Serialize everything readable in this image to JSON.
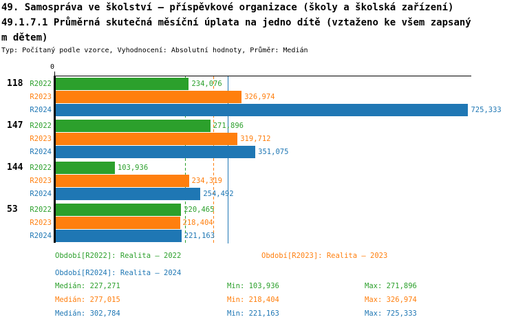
{
  "title": {
    "line1": "49. Samospráva ve školství – příspěvkové organizace (školy a školská zařízení)",
    "line2": "49.1.7.1 Průměrná skutečná měsíční úplata na jedno dítě (vztaženo ke všem zapsaný",
    "line3": "m dětem)",
    "meta": "Typ: Počítaný podle vzorce, Vyhodnocení: Absolutní hodnoty, Průměr: Medián"
  },
  "colors": {
    "background": "#ffffff",
    "axis": "#000000",
    "r2022": "#2ca02c",
    "r2023": "#ff7f0e",
    "r2024": "#1f77b4"
  },
  "chart_data": {
    "type": "bar",
    "orientation": "horizontal",
    "title": "49.1.7.1 Průměrná skutečná měsíční úplata na jedno dítě (vztaženo ke všem zapsaným dětem)",
    "categories": [
      "118",
      "147",
      "144",
      "53"
    ],
    "series": [
      {
        "name": "R2022",
        "label": "Realita – 2022",
        "color": "#2ca02c",
        "values": [
          234076,
          271896,
          103936,
          220465
        ],
        "value_labels": [
          "234,076",
          "271,896",
          "103,936",
          "220,465"
        ],
        "median": 227271,
        "median_label": "227,271",
        "gridline_style": "dashed"
      },
      {
        "name": "R2023",
        "label": "Realita – 2023",
        "color": "#ff7f0e",
        "values": [
          326974,
          319712,
          234319,
          218404
        ],
        "value_labels": [
          "326,974",
          "319,712",
          "234,319",
          "218,404"
        ],
        "median": 277015,
        "median_label": "277,015",
        "gridline_style": "dashed"
      },
      {
        "name": "R2024",
        "label": "Realita – 2024",
        "color": "#1f77b4",
        "values": [
          725333,
          351075,
          254492,
          221163
        ],
        "value_labels": [
          "725,333",
          "351,075",
          "254,492",
          "221,163"
        ],
        "median": 302784,
        "median_label": "302,784",
        "gridline_style": "solid"
      }
    ],
    "axis": {
      "tick0": "0",
      "xmin": 0,
      "xmax": 732000,
      "grid": "median-lines"
    },
    "legend_position": "bottom"
  },
  "legend": {
    "items": [
      {
        "text": "Období[R2022]: Realita – 2022",
        "color": "#2ca02c"
      },
      {
        "text": "Období[R2023]: Realita – 2023",
        "color": "#ff7f0e"
      },
      {
        "text": "Období[R2024]: Realita – 2024",
        "color": "#1f77b4"
      }
    ]
  },
  "stats": {
    "rows": [
      {
        "color": "#2ca02c",
        "median": "Medián: 227,271",
        "min": "Min: 103,936",
        "max": "Max: 271,896"
      },
      {
        "color": "#ff7f0e",
        "median": "Medián: 277,015",
        "min": "Min: 218,404",
        "max": "Max: 326,974"
      },
      {
        "color": "#1f77b4",
        "median": "Medián: 302,784",
        "min": "Min: 221,163",
        "max": "Max: 725,333"
      }
    ]
  }
}
